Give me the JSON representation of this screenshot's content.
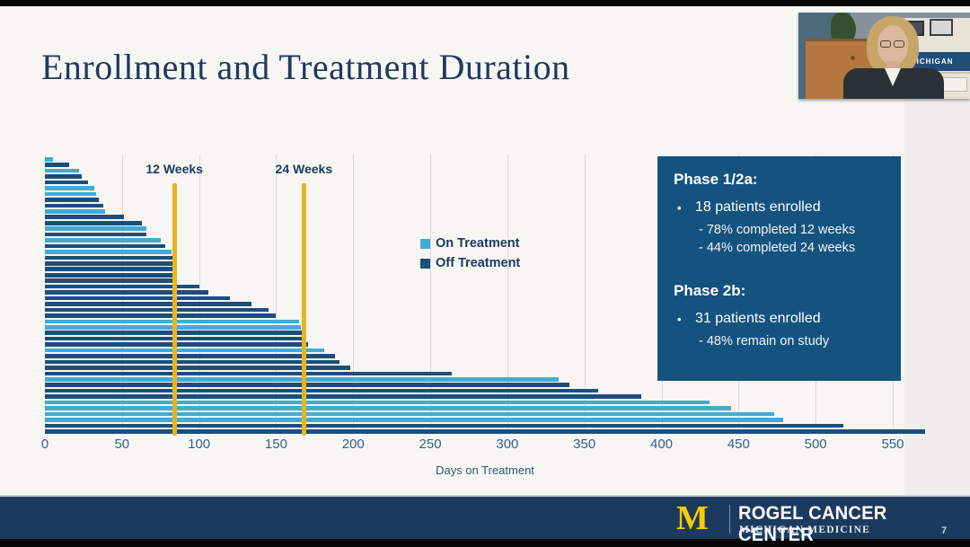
{
  "slide": {
    "title": "Enrollment and Treatment Duration"
  },
  "chart_data": {
    "type": "bar",
    "orientation": "horizontal",
    "title": "",
    "xlabel": "Days on Treatment",
    "ylabel": "",
    "xlim": [
      0,
      571
    ],
    "x_ticks": [
      0,
      50,
      100,
      150,
      200,
      250,
      300,
      350,
      400,
      450,
      500,
      550
    ],
    "grid": true,
    "legend_position": "center",
    "legend": [
      {
        "label": "On Treatment",
        "status": "on",
        "color": "#41abd5"
      },
      {
        "label": "Off Treatment",
        "status": "off",
        "color": "#1c4e7c"
      }
    ],
    "reference_lines": [
      {
        "label": "12 Weeks",
        "days": 84
      },
      {
        "label": "24 Weeks",
        "days": 168
      }
    ],
    "colors": {
      "on": "#41abd5",
      "off": "#1c4e7c",
      "grid": "#dbdad6",
      "axis_line": "#1c4e7c",
      "reference": "#e9b31f",
      "tick_text": "#33608e"
    },
    "bars": [
      {
        "days": 5,
        "status": "on"
      },
      {
        "days": 16,
        "status": "off"
      },
      {
        "days": 22,
        "status": "on"
      },
      {
        "days": 24,
        "status": "off"
      },
      {
        "days": 28,
        "status": "off"
      },
      {
        "days": 32,
        "status": "on"
      },
      {
        "days": 33,
        "status": "on"
      },
      {
        "days": 35,
        "status": "off"
      },
      {
        "days": 38,
        "status": "off"
      },
      {
        "days": 39,
        "status": "on"
      },
      {
        "days": 51,
        "status": "off"
      },
      {
        "days": 63,
        "status": "off"
      },
      {
        "days": 66,
        "status": "on"
      },
      {
        "days": 66,
        "status": "off"
      },
      {
        "days": 75,
        "status": "on"
      },
      {
        "days": 78,
        "status": "off"
      },
      {
        "days": 82,
        "status": "on"
      },
      {
        "days": 84,
        "status": "off"
      },
      {
        "days": 84,
        "status": "off"
      },
      {
        "days": 84,
        "status": "off"
      },
      {
        "days": 85,
        "status": "off"
      },
      {
        "days": 85,
        "status": "off"
      },
      {
        "days": 100,
        "status": "off"
      },
      {
        "days": 106,
        "status": "off"
      },
      {
        "days": 120,
        "status": "off"
      },
      {
        "days": 134,
        "status": "off"
      },
      {
        "days": 145,
        "status": "off"
      },
      {
        "days": 150,
        "status": "off"
      },
      {
        "days": 165,
        "status": "on"
      },
      {
        "days": 166,
        "status": "on"
      },
      {
        "days": 167,
        "status": "off"
      },
      {
        "days": 169,
        "status": "off"
      },
      {
        "days": 171,
        "status": "off"
      },
      {
        "days": 181,
        "status": "on"
      },
      {
        "days": 188,
        "status": "off"
      },
      {
        "days": 191,
        "status": "off"
      },
      {
        "days": 198,
        "status": "off"
      },
      {
        "days": 264,
        "status": "off"
      },
      {
        "days": 333,
        "status": "on"
      },
      {
        "days": 340,
        "status": "off"
      },
      {
        "days": 359,
        "status": "off"
      },
      {
        "days": 387,
        "status": "off"
      },
      {
        "days": 431,
        "status": "on"
      },
      {
        "days": 445,
        "status": "on"
      },
      {
        "days": 473,
        "status": "on"
      },
      {
        "days": 479,
        "status": "on"
      },
      {
        "days": 518,
        "status": "off"
      }
    ]
  },
  "info_box": {
    "bullet_char": "•",
    "sections": [
      {
        "title": "Phase 1/2a:",
        "bullet": "18 patients enrolled",
        "subs": [
          "- 78% completed 12 weeks",
          "- 44% completed 24 weeks"
        ]
      },
      {
        "title": "Phase 2b:",
        "bullet": "31 patients enrolled",
        "subs": [
          "- 48% remain on study"
        ]
      }
    ],
    "background": "#14537f"
  },
  "webcam": {
    "shelf_sign": "MICHIGAN"
  },
  "footer": {
    "logo_letter": "M",
    "org_name": "ROGEL CANCER CENTER",
    "org_subtitle": "MICHIGAN MEDICINE",
    "page_number": "7",
    "bar_color": "#1c3a5e",
    "maize": "#ffcb05"
  }
}
